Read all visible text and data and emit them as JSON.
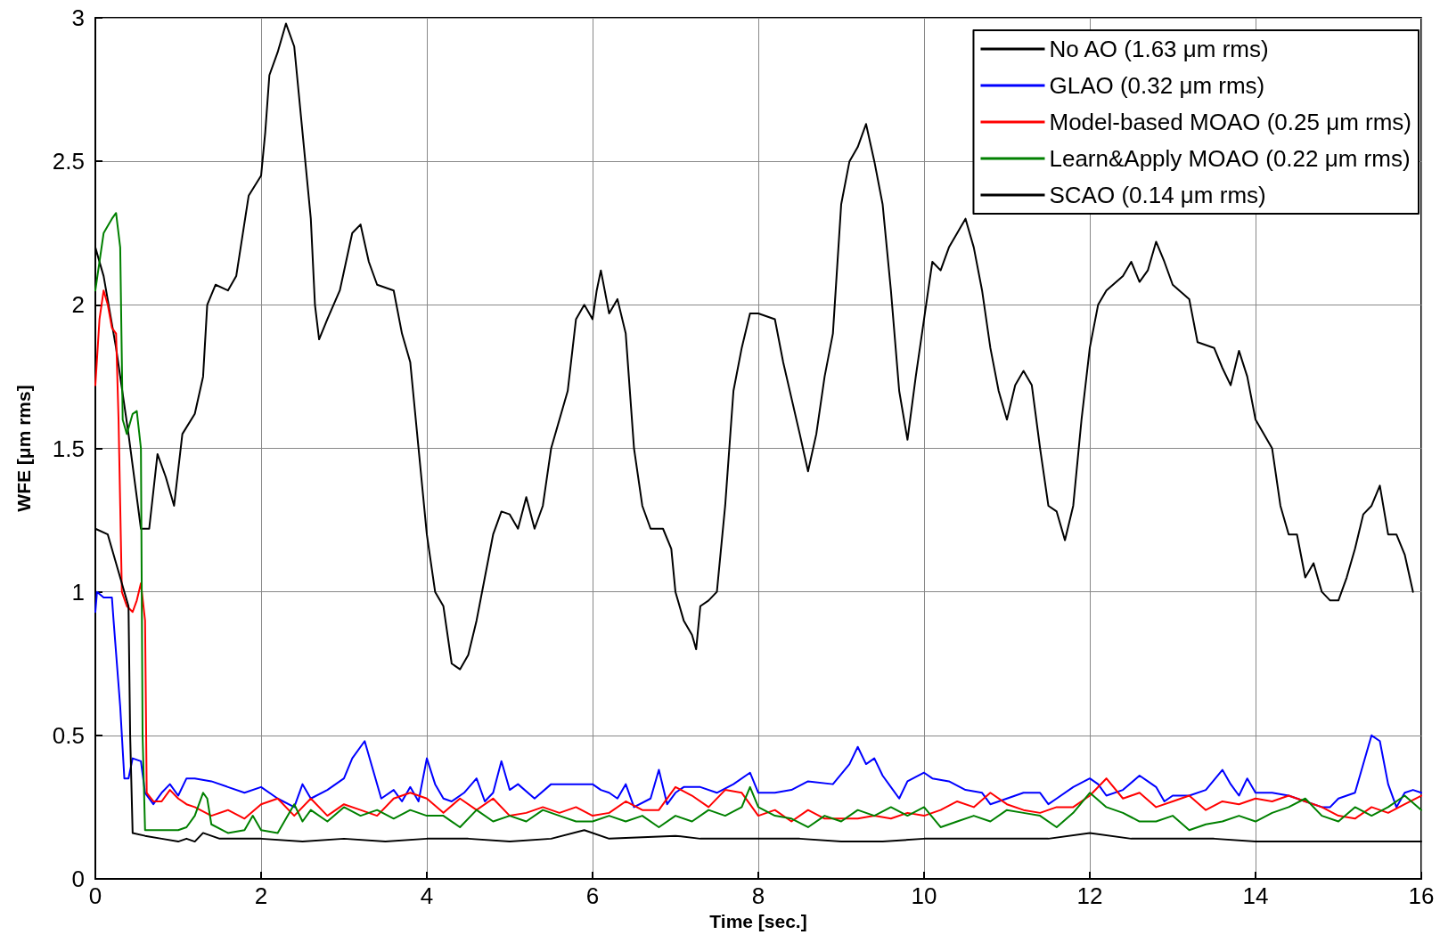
{
  "chart_data": {
    "type": "line",
    "xlabel": "Time [sec.]",
    "ylabel": "WFE [μm rms]",
    "xlim": [
      0,
      16
    ],
    "xticks": [
      0,
      2,
      4,
      6,
      8,
      10,
      12,
      14,
      16
    ],
    "ylim": [
      0,
      3
    ],
    "yticks": [
      0,
      0.5,
      1,
      1.5,
      2,
      2.5,
      3
    ],
    "grid": true,
    "legend": "top right",
    "marker": "none",
    "line_style": "solid",
    "series": [
      {
        "name": "No AO (1.63 μm rms)",
        "color": "#000000",
        "x": [
          0,
          0.1,
          0.25,
          0.4,
          0.55,
          0.65,
          0.75,
          0.85,
          0.95,
          1.05,
          1.2,
          1.3,
          1.35,
          1.45,
          1.6,
          1.7,
          1.85,
          2.0,
          2.05,
          2.1,
          2.2,
          2.3,
          2.4,
          2.5,
          2.6,
          2.65,
          2.7,
          2.8,
          2.95,
          3.1,
          3.2,
          3.3,
          3.4,
          3.6,
          3.7,
          3.8,
          3.9,
          4.0,
          4.1,
          4.2,
          4.3,
          4.4,
          4.5,
          4.6,
          4.7,
          4.8,
          4.9,
          5.0,
          5.1,
          5.2,
          5.3,
          5.4,
          5.5,
          5.7,
          5.8,
          5.9,
          6.0,
          6.05,
          6.1,
          6.2,
          6.3,
          6.4,
          6.5,
          6.6,
          6.7,
          6.85,
          6.95,
          7.0,
          7.1,
          7.2,
          7.25,
          7.3,
          7.4,
          7.5,
          7.6,
          7.7,
          7.8,
          7.9,
          8.0,
          8.2,
          8.3,
          8.5,
          8.6,
          8.7,
          8.8,
          8.9,
          9.0,
          9.1,
          9.2,
          9.3,
          9.4,
          9.5,
          9.6,
          9.7,
          9.8,
          9.9,
          10.0,
          10.1,
          10.2,
          10.3,
          10.4,
          10.5,
          10.6,
          10.7,
          10.8,
          10.9,
          11.0,
          11.1,
          11.2,
          11.3,
          11.4,
          11.5,
          11.6,
          11.7,
          11.8,
          11.9,
          12.0,
          12.1,
          12.2,
          12.4,
          12.5,
          12.6,
          12.7,
          12.8,
          12.9,
          13.0,
          13.2,
          13.3,
          13.5,
          13.6,
          13.7,
          13.8,
          13.9,
          14.0,
          14.2,
          14.3,
          14.4,
          14.5,
          14.6,
          14.7,
          14.8,
          14.9,
          15.0,
          15.1,
          15.2,
          15.3,
          15.4,
          15.5,
          15.6,
          15.7,
          15.8,
          15.9
        ],
        "values": [
          2.2,
          2.1,
          1.85,
          1.55,
          1.22,
          1.22,
          1.48,
          1.4,
          1.3,
          1.55,
          1.62,
          1.75,
          2.0,
          2.07,
          2.05,
          2.1,
          2.38,
          2.45,
          2.6,
          2.8,
          2.88,
          2.98,
          2.9,
          2.6,
          2.3,
          2.0,
          1.88,
          1.95,
          2.05,
          2.25,
          2.28,
          2.15,
          2.07,
          2.05,
          1.9,
          1.8,
          1.5,
          1.2,
          1.0,
          0.95,
          0.75,
          0.73,
          0.78,
          0.9,
          1.05,
          1.2,
          1.28,
          1.27,
          1.22,
          1.33,
          1.22,
          1.3,
          1.5,
          1.7,
          1.95,
          2.0,
          1.95,
          2.05,
          2.12,
          1.97,
          2.02,
          1.9,
          1.5,
          1.3,
          1.22,
          1.22,
          1.15,
          1.0,
          0.9,
          0.85,
          0.8,
          0.95,
          0.97,
          1.0,
          1.3,
          1.7,
          1.85,
          1.97,
          1.97,
          1.95,
          1.8,
          1.55,
          1.42,
          1.55,
          1.75,
          1.9,
          2.35,
          2.5,
          2.55,
          2.63,
          2.5,
          2.35,
          2.05,
          1.7,
          1.53,
          1.75,
          1.95,
          2.15,
          2.12,
          2.2,
          2.25,
          2.3,
          2.2,
          2.05,
          1.85,
          1.7,
          1.6,
          1.72,
          1.77,
          1.72,
          1.5,
          1.3,
          1.28,
          1.18,
          1.3,
          1.6,
          1.85,
          2.0,
          2.05,
          2.1,
          2.15,
          2.08,
          2.12,
          2.22,
          2.15,
          2.07,
          2.02,
          1.87,
          1.85,
          1.78,
          1.72,
          1.84,
          1.75,
          1.6,
          1.5,
          1.3,
          1.2,
          1.2,
          1.05,
          1.1,
          1.0,
          0.97,
          0.97,
          1.05,
          1.15,
          1.27,
          1.3,
          1.37,
          1.2,
          1.2,
          1.13,
          1.0
        ]
      },
      {
        "name": "GLAO (0.32 μm rms)",
        "color": "#0000ff",
        "x": [
          0,
          0.02,
          0.1,
          0.2,
          0.22,
          0.3,
          0.35,
          0.4,
          0.45,
          0.55,
          0.6,
          0.7,
          0.8,
          0.9,
          1.0,
          1.1,
          1.2,
          1.4,
          1.6,
          1.8,
          2.0,
          2.2,
          2.4,
          2.5,
          2.6,
          2.8,
          3.0,
          3.1,
          3.25,
          3.35,
          3.45,
          3.6,
          3.7,
          3.8,
          3.9,
          4.0,
          4.1,
          4.2,
          4.3,
          4.45,
          4.6,
          4.7,
          4.8,
          4.9,
          5.0,
          5.1,
          5.3,
          5.5,
          5.7,
          5.9,
          6.0,
          6.1,
          6.2,
          6.3,
          6.4,
          6.5,
          6.7,
          6.8,
          6.9,
          7.0,
          7.1,
          7.3,
          7.5,
          7.7,
          7.9,
          8.0,
          8.2,
          8.4,
          8.6,
          8.9,
          9.1,
          9.2,
          9.3,
          9.4,
          9.5,
          9.6,
          9.7,
          9.8,
          10.0,
          10.1,
          10.3,
          10.5,
          10.7,
          10.8,
          11.0,
          11.2,
          11.4,
          11.5,
          11.6,
          11.8,
          12.0,
          12.1,
          12.2,
          12.4,
          12.6,
          12.7,
          12.8,
          12.9,
          13.0,
          13.2,
          13.4,
          13.6,
          13.7,
          13.8,
          13.9,
          14.0,
          14.2,
          14.4,
          14.6,
          14.8,
          14.9,
          15.0,
          15.2,
          15.3,
          15.4,
          15.5,
          15.6,
          15.7,
          15.8,
          15.9,
          16
        ],
        "values": [
          0.93,
          1.0,
          0.98,
          0.98,
          0.9,
          0.6,
          0.35,
          0.35,
          0.42,
          0.41,
          0.3,
          0.26,
          0.3,
          0.33,
          0.29,
          0.35,
          0.35,
          0.34,
          0.32,
          0.3,
          0.32,
          0.28,
          0.25,
          0.33,
          0.28,
          0.31,
          0.35,
          0.42,
          0.48,
          0.38,
          0.28,
          0.31,
          0.27,
          0.32,
          0.27,
          0.42,
          0.33,
          0.28,
          0.27,
          0.3,
          0.35,
          0.27,
          0.3,
          0.41,
          0.31,
          0.33,
          0.28,
          0.33,
          0.33,
          0.33,
          0.33,
          0.31,
          0.3,
          0.28,
          0.33,
          0.25,
          0.28,
          0.38,
          0.26,
          0.3,
          0.32,
          0.32,
          0.3,
          0.33,
          0.37,
          0.3,
          0.3,
          0.31,
          0.34,
          0.33,
          0.4,
          0.46,
          0.4,
          0.42,
          0.36,
          0.32,
          0.28,
          0.34,
          0.37,
          0.35,
          0.34,
          0.31,
          0.3,
          0.26,
          0.28,
          0.3,
          0.3,
          0.26,
          0.28,
          0.32,
          0.35,
          0.33,
          0.29,
          0.31,
          0.36,
          0.34,
          0.32,
          0.27,
          0.29,
          0.29,
          0.31,
          0.38,
          0.33,
          0.29,
          0.35,
          0.3,
          0.3,
          0.29,
          0.27,
          0.25,
          0.25,
          0.28,
          0.3,
          0.4,
          0.5,
          0.48,
          0.33,
          0.25,
          0.3,
          0.31,
          0.3
        ]
      },
      {
        "name": "Model-based MOAO (0.25 μm rms)",
        "color": "#ff0000",
        "x": [
          0,
          0.05,
          0.1,
          0.15,
          0.2,
          0.25,
          0.28,
          0.3,
          0.32,
          0.38,
          0.45,
          0.5,
          0.55,
          0.6,
          0.62,
          0.7,
          0.8,
          0.9,
          1.0,
          1.1,
          1.2,
          1.4,
          1.6,
          1.8,
          2.0,
          2.2,
          2.4,
          2.6,
          2.8,
          3.0,
          3.2,
          3.4,
          3.6,
          3.8,
          4.0,
          4.2,
          4.4,
          4.6,
          4.8,
          5.0,
          5.2,
          5.4,
          5.6,
          5.8,
          6.0,
          6.2,
          6.4,
          6.6,
          6.8,
          7.0,
          7.2,
          7.4,
          7.6,
          7.8,
          8.0,
          8.2,
          8.4,
          8.6,
          8.8,
          9.0,
          9.2,
          9.4,
          9.6,
          9.8,
          10.0,
          10.2,
          10.4,
          10.6,
          10.8,
          11.0,
          11.2,
          11.4,
          11.6,
          11.8,
          12.0,
          12.2,
          12.4,
          12.6,
          12.8,
          13.0,
          13.2,
          13.4,
          13.6,
          13.8,
          14.0,
          14.2,
          14.4,
          14.6,
          14.8,
          15.0,
          15.2,
          15.4,
          15.6,
          15.8,
          16
        ],
        "values": [
          1.72,
          1.95,
          2.05,
          2.0,
          1.92,
          1.9,
          1.6,
          1.3,
          1.0,
          0.95,
          0.93,
          0.97,
          1.03,
          0.9,
          0.3,
          0.27,
          0.27,
          0.31,
          0.28,
          0.26,
          0.25,
          0.22,
          0.24,
          0.21,
          0.26,
          0.28,
          0.22,
          0.28,
          0.22,
          0.26,
          0.24,
          0.22,
          0.28,
          0.3,
          0.28,
          0.23,
          0.28,
          0.24,
          0.28,
          0.22,
          0.23,
          0.25,
          0.23,
          0.25,
          0.22,
          0.23,
          0.27,
          0.24,
          0.24,
          0.32,
          0.29,
          0.25,
          0.31,
          0.3,
          0.22,
          0.24,
          0.2,
          0.24,
          0.21,
          0.21,
          0.21,
          0.22,
          0.21,
          0.23,
          0.22,
          0.24,
          0.27,
          0.25,
          0.3,
          0.26,
          0.24,
          0.23,
          0.25,
          0.25,
          0.29,
          0.35,
          0.28,
          0.3,
          0.25,
          0.27,
          0.29,
          0.24,
          0.27,
          0.26,
          0.28,
          0.27,
          0.29,
          0.27,
          0.25,
          0.22,
          0.21,
          0.25,
          0.23,
          0.26,
          0.29
        ]
      },
      {
        "name": "Learn&Apply MOAO (0.22 μm rms)",
        "color": "#008000",
        "x": [
          0,
          0.1,
          0.2,
          0.25,
          0.3,
          0.33,
          0.38,
          0.45,
          0.5,
          0.55,
          0.57,
          0.6,
          0.8,
          1.0,
          1.1,
          1.2,
          1.3,
          1.35,
          1.4,
          1.6,
          1.8,
          1.9,
          2.0,
          2.2,
          2.4,
          2.5,
          2.6,
          2.8,
          3.0,
          3.2,
          3.4,
          3.6,
          3.8,
          4.0,
          4.2,
          4.4,
          4.6,
          4.8,
          5.0,
          5.2,
          5.4,
          5.6,
          5.8,
          6.0,
          6.2,
          6.4,
          6.6,
          6.8,
          7.0,
          7.2,
          7.4,
          7.6,
          7.8,
          7.9,
          8.0,
          8.2,
          8.4,
          8.6,
          8.8,
          9.0,
          9.2,
          9.4,
          9.6,
          9.8,
          10.0,
          10.2,
          10.4,
          10.6,
          10.8,
          11.0,
          11.2,
          11.4,
          11.6,
          11.8,
          12.0,
          12.2,
          12.4,
          12.6,
          12.8,
          13.0,
          13.2,
          13.4,
          13.6,
          13.8,
          14.0,
          14.2,
          14.4,
          14.6,
          14.8,
          15.0,
          15.2,
          15.4,
          15.6,
          15.8,
          16
        ],
        "values": [
          2.05,
          2.25,
          2.3,
          2.32,
          2.2,
          1.6,
          1.55,
          1.62,
          1.63,
          1.5,
          0.5,
          0.17,
          0.17,
          0.17,
          0.18,
          0.22,
          0.3,
          0.28,
          0.19,
          0.16,
          0.17,
          0.22,
          0.17,
          0.16,
          0.26,
          0.2,
          0.24,
          0.2,
          0.25,
          0.22,
          0.24,
          0.21,
          0.24,
          0.22,
          0.22,
          0.18,
          0.24,
          0.2,
          0.22,
          0.2,
          0.24,
          0.22,
          0.2,
          0.2,
          0.22,
          0.2,
          0.22,
          0.18,
          0.22,
          0.2,
          0.24,
          0.22,
          0.25,
          0.32,
          0.25,
          0.22,
          0.21,
          0.18,
          0.22,
          0.2,
          0.24,
          0.22,
          0.25,
          0.22,
          0.25,
          0.18,
          0.2,
          0.22,
          0.2,
          0.24,
          0.23,
          0.22,
          0.18,
          0.23,
          0.3,
          0.25,
          0.23,
          0.2,
          0.2,
          0.22,
          0.17,
          0.19,
          0.2,
          0.22,
          0.2,
          0.23,
          0.25,
          0.28,
          0.22,
          0.2,
          0.25,
          0.22,
          0.25,
          0.29,
          0.24
        ]
      },
      {
        "name": "SCAO (0.14 μm rms)",
        "color": "#000000",
        "x": [
          0,
          0.15,
          0.25,
          0.35,
          0.4,
          0.42,
          0.45,
          0.6,
          0.8,
          1.0,
          1.1,
          1.2,
          1.3,
          1.5,
          2.0,
          2.5,
          3.0,
          3.5,
          4.0,
          4.5,
          5.0,
          5.5,
          5.9,
          6.2,
          7.0,
          7.3,
          8.0,
          8.5,
          9.0,
          9.5,
          10.0,
          10.5,
          11.0,
          11.5,
          12.0,
          12.5,
          13.0,
          13.5,
          14.0,
          14.5,
          15.0,
          15.5,
          16
        ],
        "values": [
          1.22,
          1.2,
          1.1,
          1.0,
          0.95,
          0.5,
          0.16,
          0.15,
          0.14,
          0.13,
          0.14,
          0.13,
          0.16,
          0.14,
          0.14,
          0.13,
          0.14,
          0.13,
          0.14,
          0.14,
          0.13,
          0.14,
          0.17,
          0.14,
          0.15,
          0.14,
          0.14,
          0.14,
          0.13,
          0.13,
          0.14,
          0.14,
          0.14,
          0.14,
          0.16,
          0.14,
          0.14,
          0.14,
          0.13,
          0.13,
          0.13,
          0.13,
          0.13
        ]
      }
    ]
  }
}
